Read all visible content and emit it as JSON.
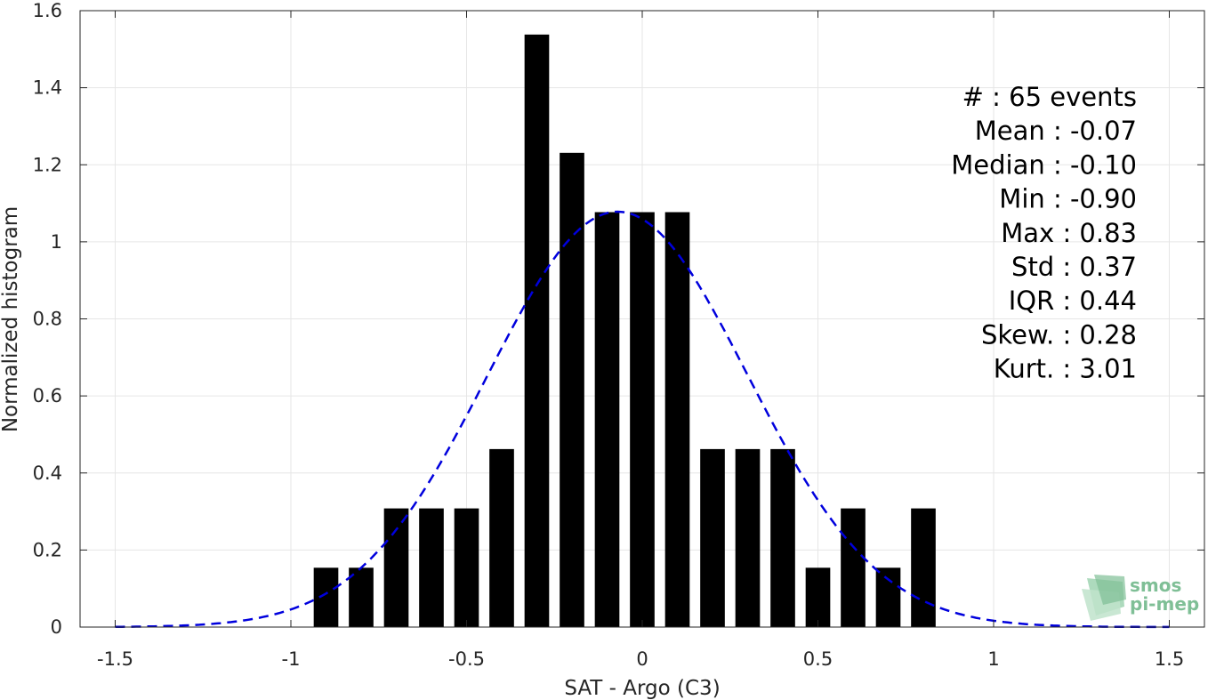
{
  "chart_data": {
    "type": "bar",
    "xlabel": "SAT - Argo (C3)",
    "ylabel": "Normalized histogram",
    "xlim": [
      -1.6,
      1.6
    ],
    "ylim": [
      0,
      1.6
    ],
    "xticks": [
      -1.5,
      -1,
      -0.5,
      0,
      0.5,
      1,
      1.5
    ],
    "xtick_labels": [
      "-1.5",
      "-1",
      "-0.5",
      "0",
      "0.5",
      "1",
      "1.5"
    ],
    "yticks": [
      0,
      0.2,
      0.4,
      0.6,
      0.8,
      1.0,
      1.2,
      1.4,
      1.6
    ],
    "ytick_labels": [
      "0",
      "0.2",
      "0.4",
      "0.6",
      "0.8",
      "1",
      "1.2",
      "1.4",
      "1.6"
    ],
    "grid": true,
    "bar_width": 0.07,
    "x": [
      -0.9,
      -0.8,
      -0.7,
      -0.6,
      -0.5,
      -0.4,
      -0.3,
      -0.2,
      -0.1,
      0.0,
      0.1,
      0.2,
      0.3,
      0.4,
      0.5,
      0.6,
      0.7,
      0.8
    ],
    "values": [
      0.154,
      0.154,
      0.308,
      0.308,
      0.308,
      0.462,
      1.538,
      1.231,
      1.077,
      1.077,
      1.077,
      0.462,
      0.462,
      0.462,
      0.154,
      0.308,
      0.154,
      0.308
    ],
    "fit_curve": {
      "style": "dashed",
      "color": "#0000dd",
      "mean": -0.07,
      "std": 0.37,
      "x_range": [
        -1.5,
        1.5
      ]
    },
    "bar_color": "#000000",
    "stats": [
      {
        "label": "#  : 65 events"
      },
      {
        "label": "Mean : -0.07"
      },
      {
        "label": "Median : -0.10"
      },
      {
        "label": "Min : -0.90"
      },
      {
        "label": "Max : 0.83"
      },
      {
        "label": "Std : 0.37"
      },
      {
        "label": "IQR : 0.44"
      },
      {
        "label": "Skew. : 0.28"
      },
      {
        "label": "Kurt. : 3.01"
      }
    ]
  },
  "logo": {
    "line1": "smos",
    "line2": "pi-mep",
    "color": "#7fbf96"
  }
}
